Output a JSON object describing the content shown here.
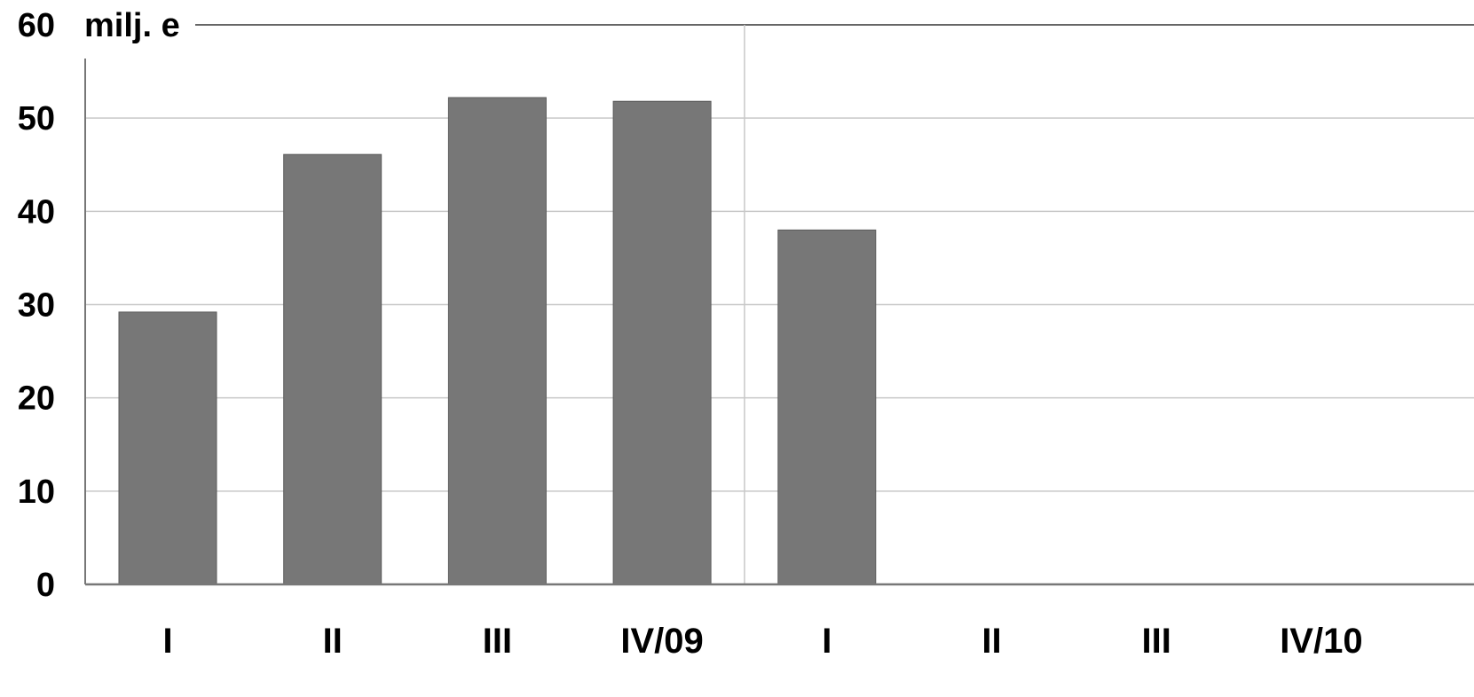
{
  "chart_data": {
    "type": "bar",
    "unit_label": "milj. e",
    "categories": [
      "I",
      "II",
      "III",
      "IV/09",
      "I",
      "II",
      "III",
      "IV/10"
    ],
    "values": [
      29.2,
      46.1,
      52.2,
      51.8,
      38,
      null,
      null,
      null
    ],
    "ylim": [
      0,
      60
    ],
    "yticks": [
      "0",
      "10",
      "20",
      "30",
      "40",
      "50",
      "60"
    ],
    "grid": true,
    "legend": "none",
    "colors": {
      "bar": "#777777",
      "bar_edge": "#5a5a5a",
      "grid": "#c8c8c8",
      "axis": "#777777",
      "text": "#000000"
    }
  }
}
